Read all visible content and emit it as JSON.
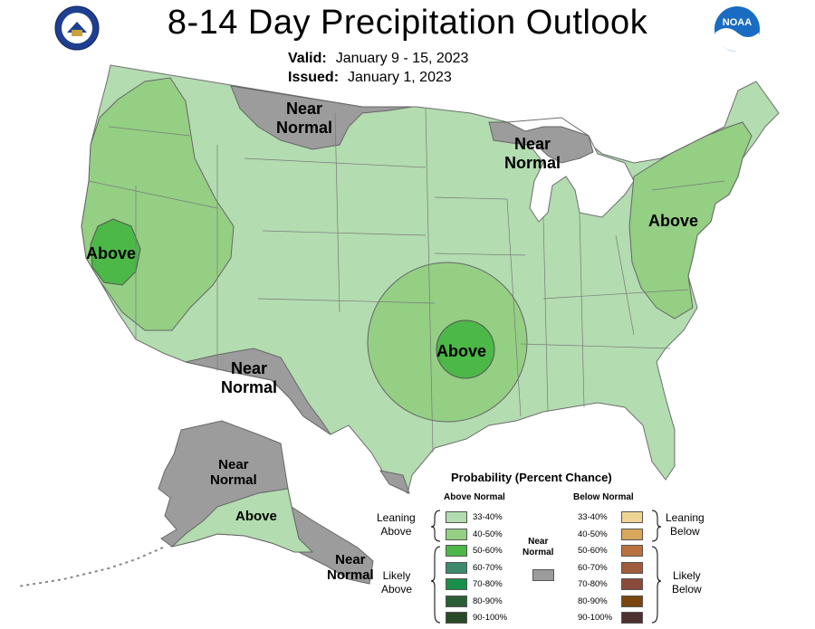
{
  "header": {
    "title": "8-14 Day Precipitation Outlook",
    "valid_label": "Valid:",
    "valid_value": "January 9 - 15, 2023",
    "issued_label": "Issued:",
    "issued_value": "January 1, 2023",
    "noaa_logo_text": "NOAA"
  },
  "map_labels": {
    "near_normal_north": "Near\nNormal",
    "near_normal_great_lakes": "Near\nNormal",
    "above_california": "Above",
    "above_east": "Above",
    "above_south_central": "Above",
    "near_normal_southwest": "Near\nNormal",
    "near_normal_alaska": "Near\nNormal",
    "above_alaska": "Above",
    "near_normal_aleutian": "Near\nNormal"
  },
  "legend": {
    "title": "Probability (Percent Chance)",
    "above_header": "Above Normal",
    "below_header": "Below Normal",
    "leaning_above": "Leaning\nAbove",
    "likely_above": "Likely\nAbove",
    "leaning_below": "Leaning\nBelow",
    "likely_below": "Likely\nBelow",
    "near_normal": "Near\nNormal",
    "above_rows": [
      {
        "pct": "33-40%",
        "color": "#b3dcb0"
      },
      {
        "pct": "40-50%",
        "color": "#94cf84"
      },
      {
        "pct": "50-60%",
        "color": "#4cb848"
      },
      {
        "pct": "60-70%",
        "color": "#3c8b6c"
      },
      {
        "pct": "70-80%",
        "color": "#18904a"
      },
      {
        "pct": "80-90%",
        "color": "#2a5e34"
      },
      {
        "pct": "90-100%",
        "color": "#294a26"
      }
    ],
    "below_rows": [
      {
        "pct": "33-40%",
        "color": "#f0d495"
      },
      {
        "pct": "40-50%",
        "color": "#d9a75b"
      },
      {
        "pct": "50-60%",
        "color": "#bb7040"
      },
      {
        "pct": "60-70%",
        "color": "#a05a3c"
      },
      {
        "pct": "70-80%",
        "color": "#8c4a3c"
      },
      {
        "pct": "80-90%",
        "color": "#7a4510"
      },
      {
        "pct": "90-100%",
        "color": "#4d3030"
      }
    ],
    "near_normal_color": "#9c9c9c"
  }
}
